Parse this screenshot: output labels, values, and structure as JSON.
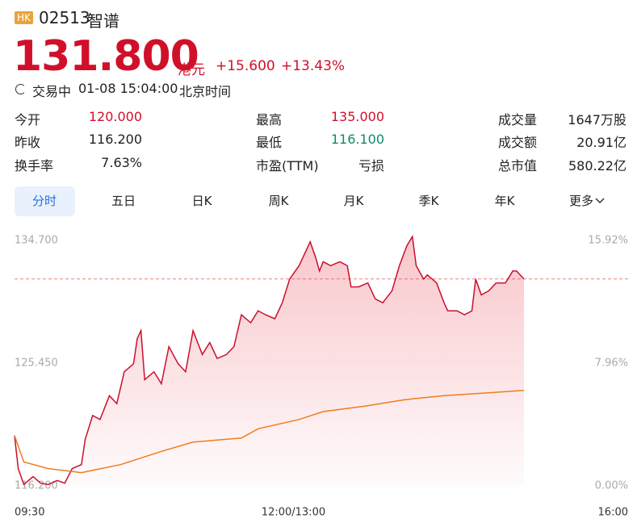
{
  "header": {
    "badge": "HK",
    "code": "02513",
    "name": "智谱",
    "price": "131.800",
    "currency": "港元",
    "change": "+15.600",
    "change_pct": "+13.43%",
    "status": "交易中",
    "time": "01-08 15:04:00",
    "timezone": "北京时间"
  },
  "stats": [
    {
      "label": "今开",
      "value": "120.000"
    },
    {
      "label": "最高",
      "value": "135.000"
    },
    {
      "label": "成交量",
      "value": "1647万股"
    },
    {
      "label": "昨收",
      "value": "116.200"
    },
    {
      "label": "最低",
      "value": "116.100"
    },
    {
      "label": "成交额",
      "value": "20.91亿"
    },
    {
      "label": "换手率",
      "value": "7.63%"
    },
    {
      "label": "市盈(TTM)",
      "value": "亏损"
    },
    {
      "label": "总市值",
      "value": "580.22亿"
    }
  ],
  "tabs": [
    "分时",
    "五日",
    "日K",
    "周K",
    "月K",
    "季K",
    "年K",
    "更多"
  ],
  "chart_data": {
    "type": "line",
    "series": [
      {
        "color": "#c8102e",
        "x": [
          0,
          2,
          5,
          10,
          14,
          18,
          23,
          27,
          31,
          36,
          38,
          42,
          46,
          51,
          55,
          59,
          64,
          66,
          68,
          70,
          75,
          79,
          83,
          88,
          92,
          96,
          101,
          105,
          109,
          114,
          118,
          122,
          127,
          131,
          135,
          140,
          144,
          148,
          153,
          155,
          159,
          162,
          164,
          166,
          170,
          175,
          179,
          181,
          185,
          190,
          194,
          198,
          203,
          207,
          211,
          214,
          216,
          220,
          222,
          227,
          231,
          233,
          238,
          242,
          246,
          248,
          251,
          255,
          259,
          264,
          268,
          270,
          274
        ],
        "values": [
          120.0,
          117.5,
          116.3,
          116.9,
          116.4,
          116.3,
          116.6,
          116.4,
          117.5,
          117.8,
          119.7,
          121.5,
          121.2,
          123.0,
          122.4,
          124.8,
          125.4,
          127.3,
          127.9,
          124.2,
          124.8,
          123.9,
          126.7,
          125.4,
          124.8,
          127.9,
          126.1,
          127.0,
          125.8,
          126.1,
          126.7,
          129.1,
          128.5,
          129.4,
          129.1,
          128.8,
          130.0,
          131.8,
          132.8,
          133.4,
          134.6,
          133.4,
          132.4,
          133.1,
          132.8,
          133.1,
          132.8,
          131.2,
          131.2,
          131.5,
          130.3,
          130.0,
          130.9,
          132.8,
          134.3,
          135.0,
          132.8,
          131.8,
          132.1,
          131.5,
          130.0,
          129.4,
          129.4,
          129.1,
          129.4,
          131.8,
          130.6,
          130.9,
          131.5,
          131.5,
          132.4,
          132.4,
          131.8
        ]
      },
      {
        "color": "#ee7d1e",
        "x": [
          0,
          5,
          18,
          36,
          57,
          79,
          96,
          122,
          131,
          153,
          166,
          188,
          210,
          231,
          253,
          274
        ],
        "values": [
          120.0,
          118.0,
          117.5,
          117.2,
          117.8,
          118.8,
          119.5,
          119.8,
          120.5,
          121.2,
          121.8,
          122.2,
          122.7,
          123.0,
          123.2,
          123.4
        ]
      }
    ],
    "area_color": "#e8404f",
    "ref_line": 131.8,
    "ref_color": "#f08080",
    "xlim": [
      0,
      330
    ],
    "xticks": [
      {
        "value": 0,
        "label": "09:30"
      },
      {
        "value": 150,
        "label": "12:00/13:00"
      },
      {
        "value": 330,
        "label": "16:00"
      }
    ],
    "ylim": [
      116.2,
      134.7
    ],
    "yticks": [
      {
        "value": 116.2,
        "label": "116.200"
      },
      {
        "value": 125.45,
        "label": "125.450"
      },
      {
        "value": 134.7,
        "label": "134.700"
      }
    ],
    "y2lim": [
      0,
      15.92
    ],
    "y2ticks": [
      {
        "value": 0,
        "label": "0.00%"
      },
      {
        "value": 7.96,
        "label": "7.96%"
      },
      {
        "value": 15.92,
        "label": "15.92%"
      }
    ]
  }
}
